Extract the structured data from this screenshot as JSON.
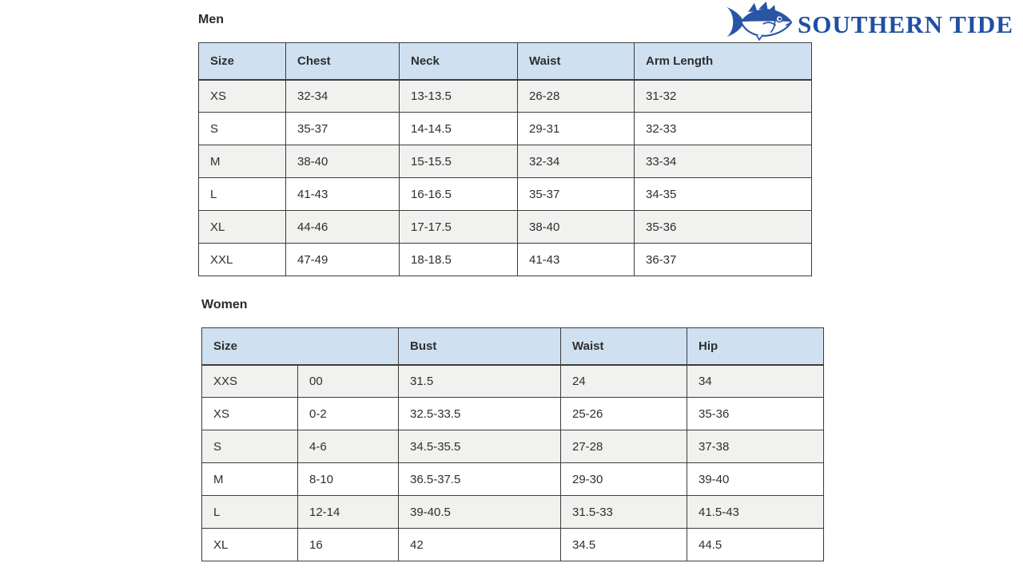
{
  "logo": {
    "brand_text": "SOUTHERN TIDE",
    "fish_icon": "skipjack-fish-icon",
    "brand_color": "#1e4fa3"
  },
  "colors": {
    "header_bg": "#cfe1f1",
    "row_alt_bg": "#f1f1f0",
    "border": "#3c3c3c",
    "text": "#2e2e2e"
  },
  "men": {
    "heading": "Men",
    "table": {
      "headers": [
        {
          "label": "Size"
        },
        {
          "label": "Chest"
        },
        {
          "label": "Neck"
        },
        {
          "label": "Waist"
        },
        {
          "label": "Arm Length"
        }
      ],
      "rows": [
        [
          "XS",
          "32-34",
          "13-13.5",
          "26-28",
          "31-32"
        ],
        [
          "S",
          "35-37",
          "14-14.5",
          "29-31",
          "32-33"
        ],
        [
          "M",
          "38-40",
          "15-15.5",
          "32-34",
          "33-34"
        ],
        [
          "L",
          "41-43",
          "16-16.5",
          "35-37",
          "34-35"
        ],
        [
          "XL",
          "44-46",
          "17-17.5",
          "38-40",
          "35-36"
        ],
        [
          "XXL",
          "47-49",
          "18-18.5",
          "41-43",
          "36-37"
        ]
      ]
    }
  },
  "women": {
    "heading": "Women",
    "table": {
      "headers": [
        {
          "label": "Size",
          "colspan": 2
        },
        {
          "label": "Bust"
        },
        {
          "label": "Waist"
        },
        {
          "label": "Hip"
        }
      ],
      "rows": [
        [
          "XXS",
          "00",
          "31.5",
          "24",
          "34"
        ],
        [
          "XS",
          "0-2",
          "32.5-33.5",
          "25-26",
          "35-36"
        ],
        [
          "S",
          "4-6",
          "34.5-35.5",
          "27-28",
          "37-38"
        ],
        [
          "M",
          "8-10",
          "36.5-37.5",
          "29-30",
          "39-40"
        ],
        [
          "L",
          "12-14",
          "39-40.5",
          "31.5-33",
          "41.5-43"
        ],
        [
          "XL",
          "16",
          "42",
          "34.5",
          "44.5"
        ]
      ]
    }
  }
}
